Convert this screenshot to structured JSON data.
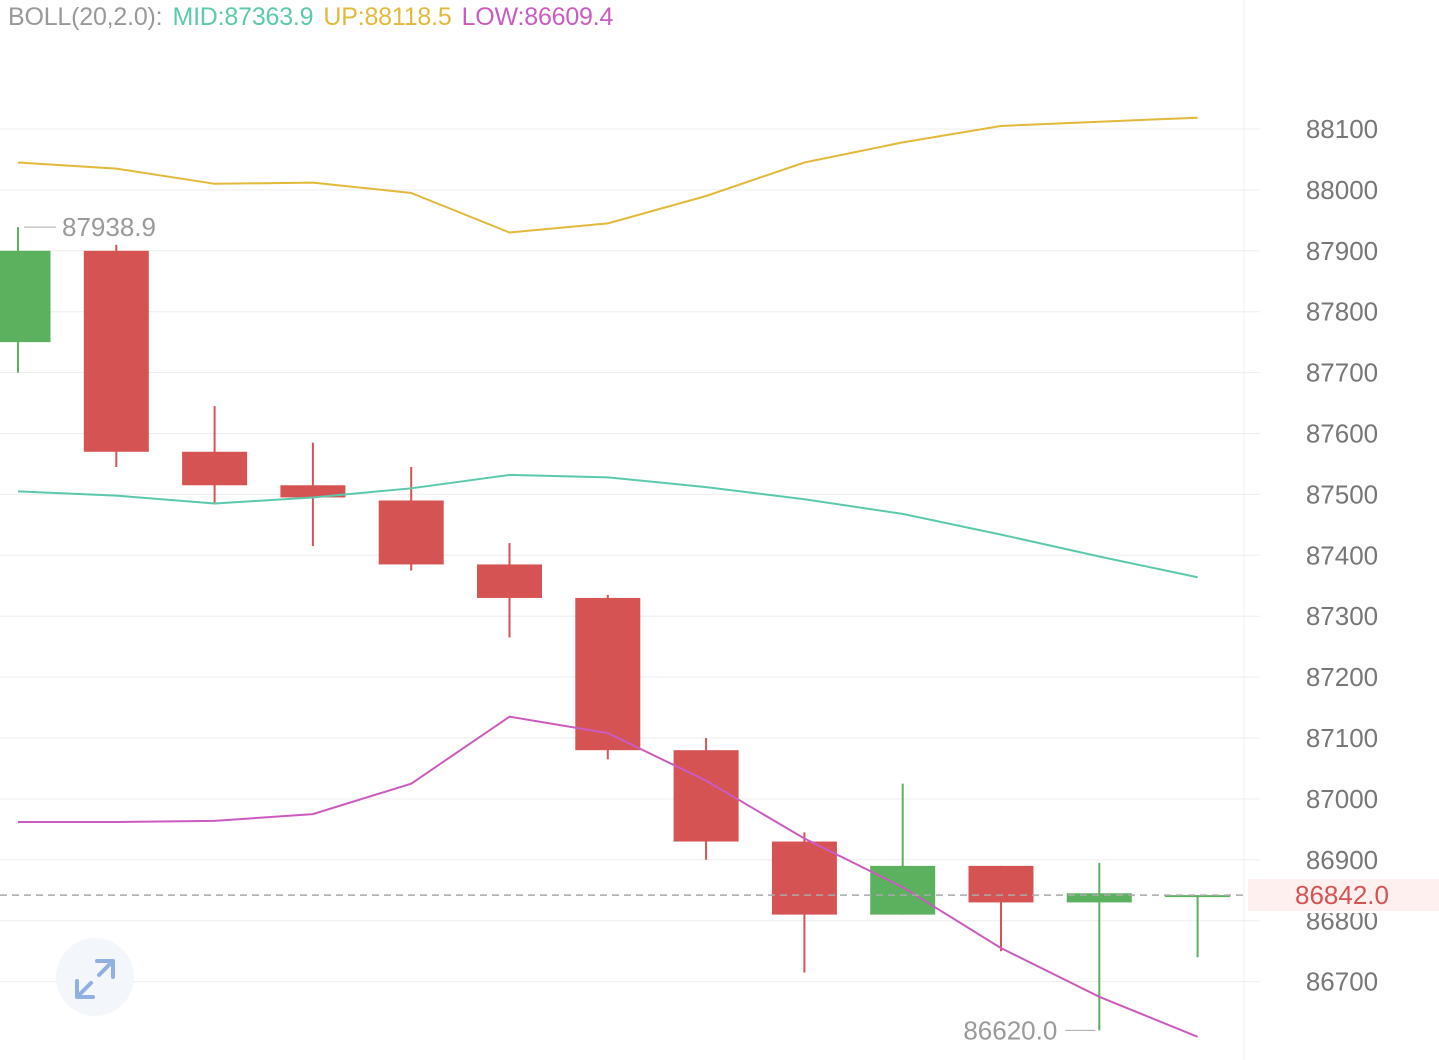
{
  "legend": {
    "name": "BOLL(20,2.0):",
    "mid": "MID:87363.9",
    "up": "UP:88118.5",
    "low": "LOW:86609.4"
  },
  "colors": {
    "up_candle": "#5cb15e",
    "down_candle": "#d65353",
    "mid_line": "#5cc9ad",
    "up_line": "#e2b93b",
    "low_line": "#cc5bc0",
    "grid": "#eeeeee",
    "axis_text": "#777777",
    "legend_name": "#999999",
    "current_price": "#d65353",
    "annotation": "#9a9a9a"
  },
  "icons": {
    "expand": "expand-arrows-icon"
  },
  "chart_data": {
    "type": "candlestick",
    "ylim": [
      86560,
      88300
    ],
    "y_ticks": [
      88100,
      88000,
      87900,
      87800,
      87700,
      87600,
      87500,
      87400,
      87300,
      87200,
      87100,
      87000,
      86900,
      86800,
      86700
    ],
    "candles": [
      {
        "open": 87750,
        "close": 87900,
        "high": 87938.9,
        "low": 87700
      },
      {
        "open": 87900,
        "close": 87570,
        "high": 87910,
        "low": 87545
      },
      {
        "open": 87570,
        "close": 87515,
        "high": 87645,
        "low": 87485
      },
      {
        "open": 87515,
        "close": 87495,
        "high": 87585,
        "low": 87415
      },
      {
        "open": 87490,
        "close": 87385,
        "high": 87545,
        "low": 87375
      },
      {
        "open": 87385,
        "close": 87330,
        "high": 87420,
        "low": 87265
      },
      {
        "open": 87330,
        "close": 87080,
        "high": 87335,
        "low": 87065
      },
      {
        "open": 87080,
        "close": 86930,
        "high": 87100,
        "low": 86900
      },
      {
        "open": 86930,
        "close": 86810,
        "high": 86945,
        "low": 86715
      },
      {
        "open": 86810,
        "close": 86890,
        "high": 87025,
        "low": 86810
      },
      {
        "open": 86890,
        "close": 86830,
        "high": 86890,
        "low": 86750
      },
      {
        "open": 86830,
        "close": 86845,
        "high": 86895,
        "low": 86620.0
      },
      {
        "open": 86842,
        "close": 86842,
        "high": 86842,
        "low": 86740
      }
    ],
    "series": [
      {
        "name": "UP",
        "values": [
          88045,
          88035,
          88010,
          88012,
          87995,
          87930,
          87945,
          87990,
          88045,
          88078,
          88105,
          88112,
          88118.5
        ]
      },
      {
        "name": "MID",
        "values": [
          87505,
          87498,
          87485,
          87495,
          87510,
          87532,
          87528,
          87512,
          87492,
          87468,
          87434,
          87398,
          87363.9
        ]
      },
      {
        "name": "LOW",
        "values": [
          86962,
          86962,
          86964,
          86975,
          87025,
          87135,
          87108,
          87030,
          86935,
          86855,
          86755,
          86675,
          86609.4
        ]
      }
    ],
    "annotations": {
      "high_label": "87938.9",
      "low_label": "86620.0"
    },
    "current_price": {
      "value": 86842.0,
      "label": "86842.0"
    }
  }
}
